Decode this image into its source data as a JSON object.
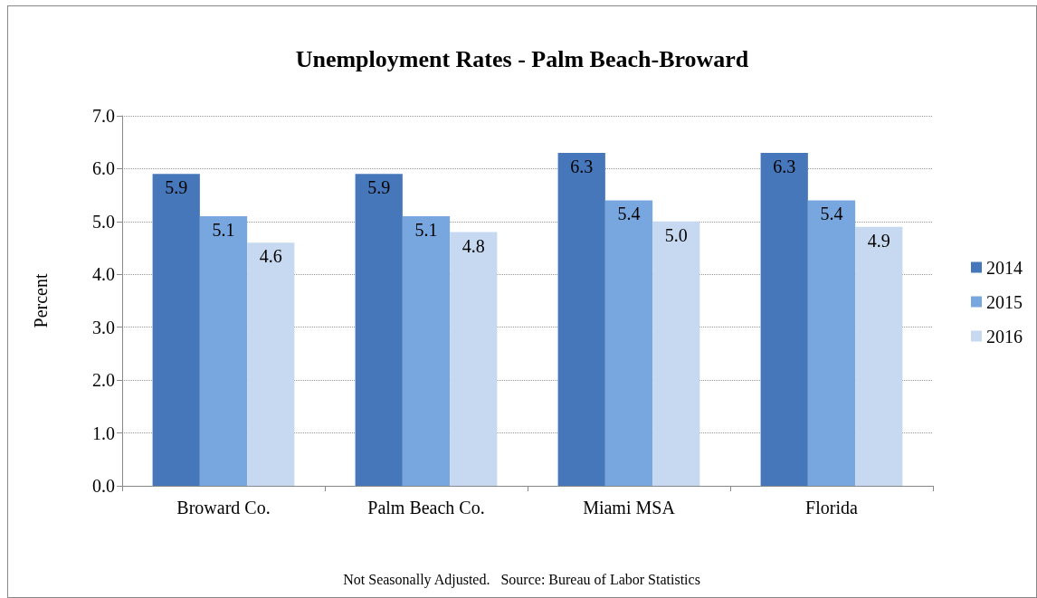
{
  "chart_data": {
    "type": "bar",
    "title": "Unemployment Rates - Palm Beach-Broward",
    "ylabel": "Percent",
    "categories": [
      "Broward Co.",
      "Palm Beach Co.",
      "Miami MSA",
      "Florida"
    ],
    "series": [
      {
        "name": "2014",
        "color": "#4677bb",
        "values": [
          5.9,
          5.9,
          6.3,
          6.3
        ],
        "value_labels": [
          "5.9",
          "5.9",
          "6.3",
          "6.3"
        ]
      },
      {
        "name": "2015",
        "color": "#78a6de",
        "values": [
          5.1,
          5.1,
          5.4,
          5.4
        ],
        "value_labels": [
          "5.1",
          "5.1",
          "5.4",
          "5.4"
        ]
      },
      {
        "name": "2016",
        "color": "#c6d9f1",
        "values": [
          4.6,
          4.8,
          5.0,
          4.9
        ],
        "value_labels": [
          "4.6",
          "4.8",
          "5.0",
          "4.9"
        ]
      }
    ],
    "ylim": [
      0,
      7
    ],
    "yticks": [
      {
        "value": 0,
        "label": "0.0"
      },
      {
        "value": 1,
        "label": "1.0"
      },
      {
        "value": 2,
        "label": "2.0"
      },
      {
        "value": 3,
        "label": "3.0"
      },
      {
        "value": 4,
        "label": "4.0"
      },
      {
        "value": 5,
        "label": "5.0"
      },
      {
        "value": 6,
        "label": "6.0"
      },
      {
        "value": 7,
        "label": "7.0"
      }
    ],
    "grid": "y",
    "legend": "right",
    "annotations": [
      "Not Seasonally Adjusted.   Source: Bureau of Labor Statistics"
    ]
  }
}
